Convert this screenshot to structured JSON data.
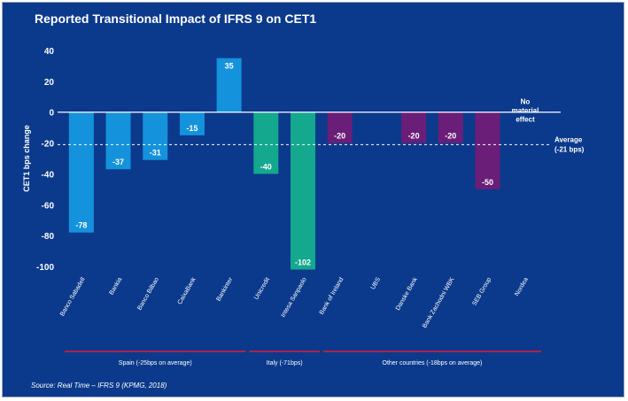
{
  "chart_data": {
    "type": "bar",
    "title": "Reported Transitional Impact of IFRS 9 on CET1",
    "ylabel": "CET1 bps change",
    "ylim": [
      -100,
      40
    ],
    "yticks": [
      40,
      20,
      0,
      -20,
      -40,
      -60,
      -80,
      -100
    ],
    "categories": [
      "Banco Sabadell",
      "Bankia",
      "Banco Bilbao",
      "CaixaBank",
      "Bankinter",
      "Unicredit",
      "Intesa Sanpaolo",
      "Bank of Ireland",
      "UBS",
      "Danske Bank",
      "Bank Zachodni WBK",
      "SEB Group",
      "Nordea"
    ],
    "values": [
      -78,
      -37,
      -31,
      -15,
      35,
      -40,
      -102,
      -20,
      null,
      -20,
      -20,
      -50,
      null
    ],
    "data_labels": [
      "-78",
      "-37",
      "-31",
      "-15",
      "35",
      "-40",
      "-102",
      "-20",
      "",
      "-20",
      "-20",
      "-50",
      ""
    ],
    "bar_colors": [
      "#1592dc",
      "#1592dc",
      "#1592dc",
      "#1592dc",
      "#1592dc",
      "#14a88e",
      "#14a88e",
      "#6a1e78",
      "#6a1e78",
      "#6a1e78",
      "#6a1e78",
      "#6a1e78",
      "#6a1e78"
    ],
    "average": {
      "value": -21,
      "label": "Average (-21 bps)"
    },
    "annotation": "No material effect",
    "groups": [
      {
        "label": "Spain (-25bps on average)",
        "color": "#b0204a",
        "from": 0,
        "to": 4
      },
      {
        "label": "Italy (-71bps)",
        "color": "#b0204a",
        "from": 5,
        "to": 6
      },
      {
        "label": "Other countries (-18bps on average)",
        "color": "#b0204a",
        "from": 7,
        "to": 12
      }
    ],
    "grid": false
  },
  "source": "Source: Real Time – IFRS 9 (KPMG, 2018)",
  "colors": {
    "background": "#0b3a8c",
    "text": "#ffffff",
    "axis": "#ffffff"
  }
}
